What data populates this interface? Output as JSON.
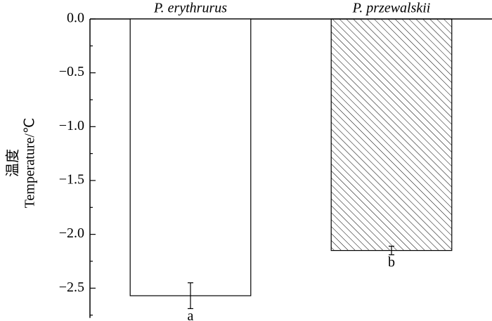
{
  "chart_data": {
    "type": "bar",
    "ylabel_cn": "温度",
    "ylabel": "Temperature/℃",
    "categories": [
      "P. erythrurus",
      "P. przewalskii"
    ],
    "values": [
      -2.57,
      -2.15
    ],
    "errors": [
      0.12,
      0.04
    ],
    "annotations": [
      "a",
      "b"
    ],
    "fills": [
      "plain",
      "hatched"
    ],
    "color": "#000000",
    "ylim": [
      -2.75,
      0
    ],
    "yticks": [
      {
        "value": 0,
        "label": "0.0"
      },
      {
        "value": -0.5,
        "label": "−0.5"
      },
      {
        "value": -1,
        "label": "−1.0"
      },
      {
        "value": -1.5,
        "label": "−1.5"
      },
      {
        "value": -2,
        "label": "−2.0"
      },
      {
        "value": -2.5,
        "label": "−2.5"
      }
    ],
    "minor_yticks": [
      -0.25,
      -0.75,
      -1.25,
      -1.75,
      -2.25,
      -2.75
    ]
  }
}
